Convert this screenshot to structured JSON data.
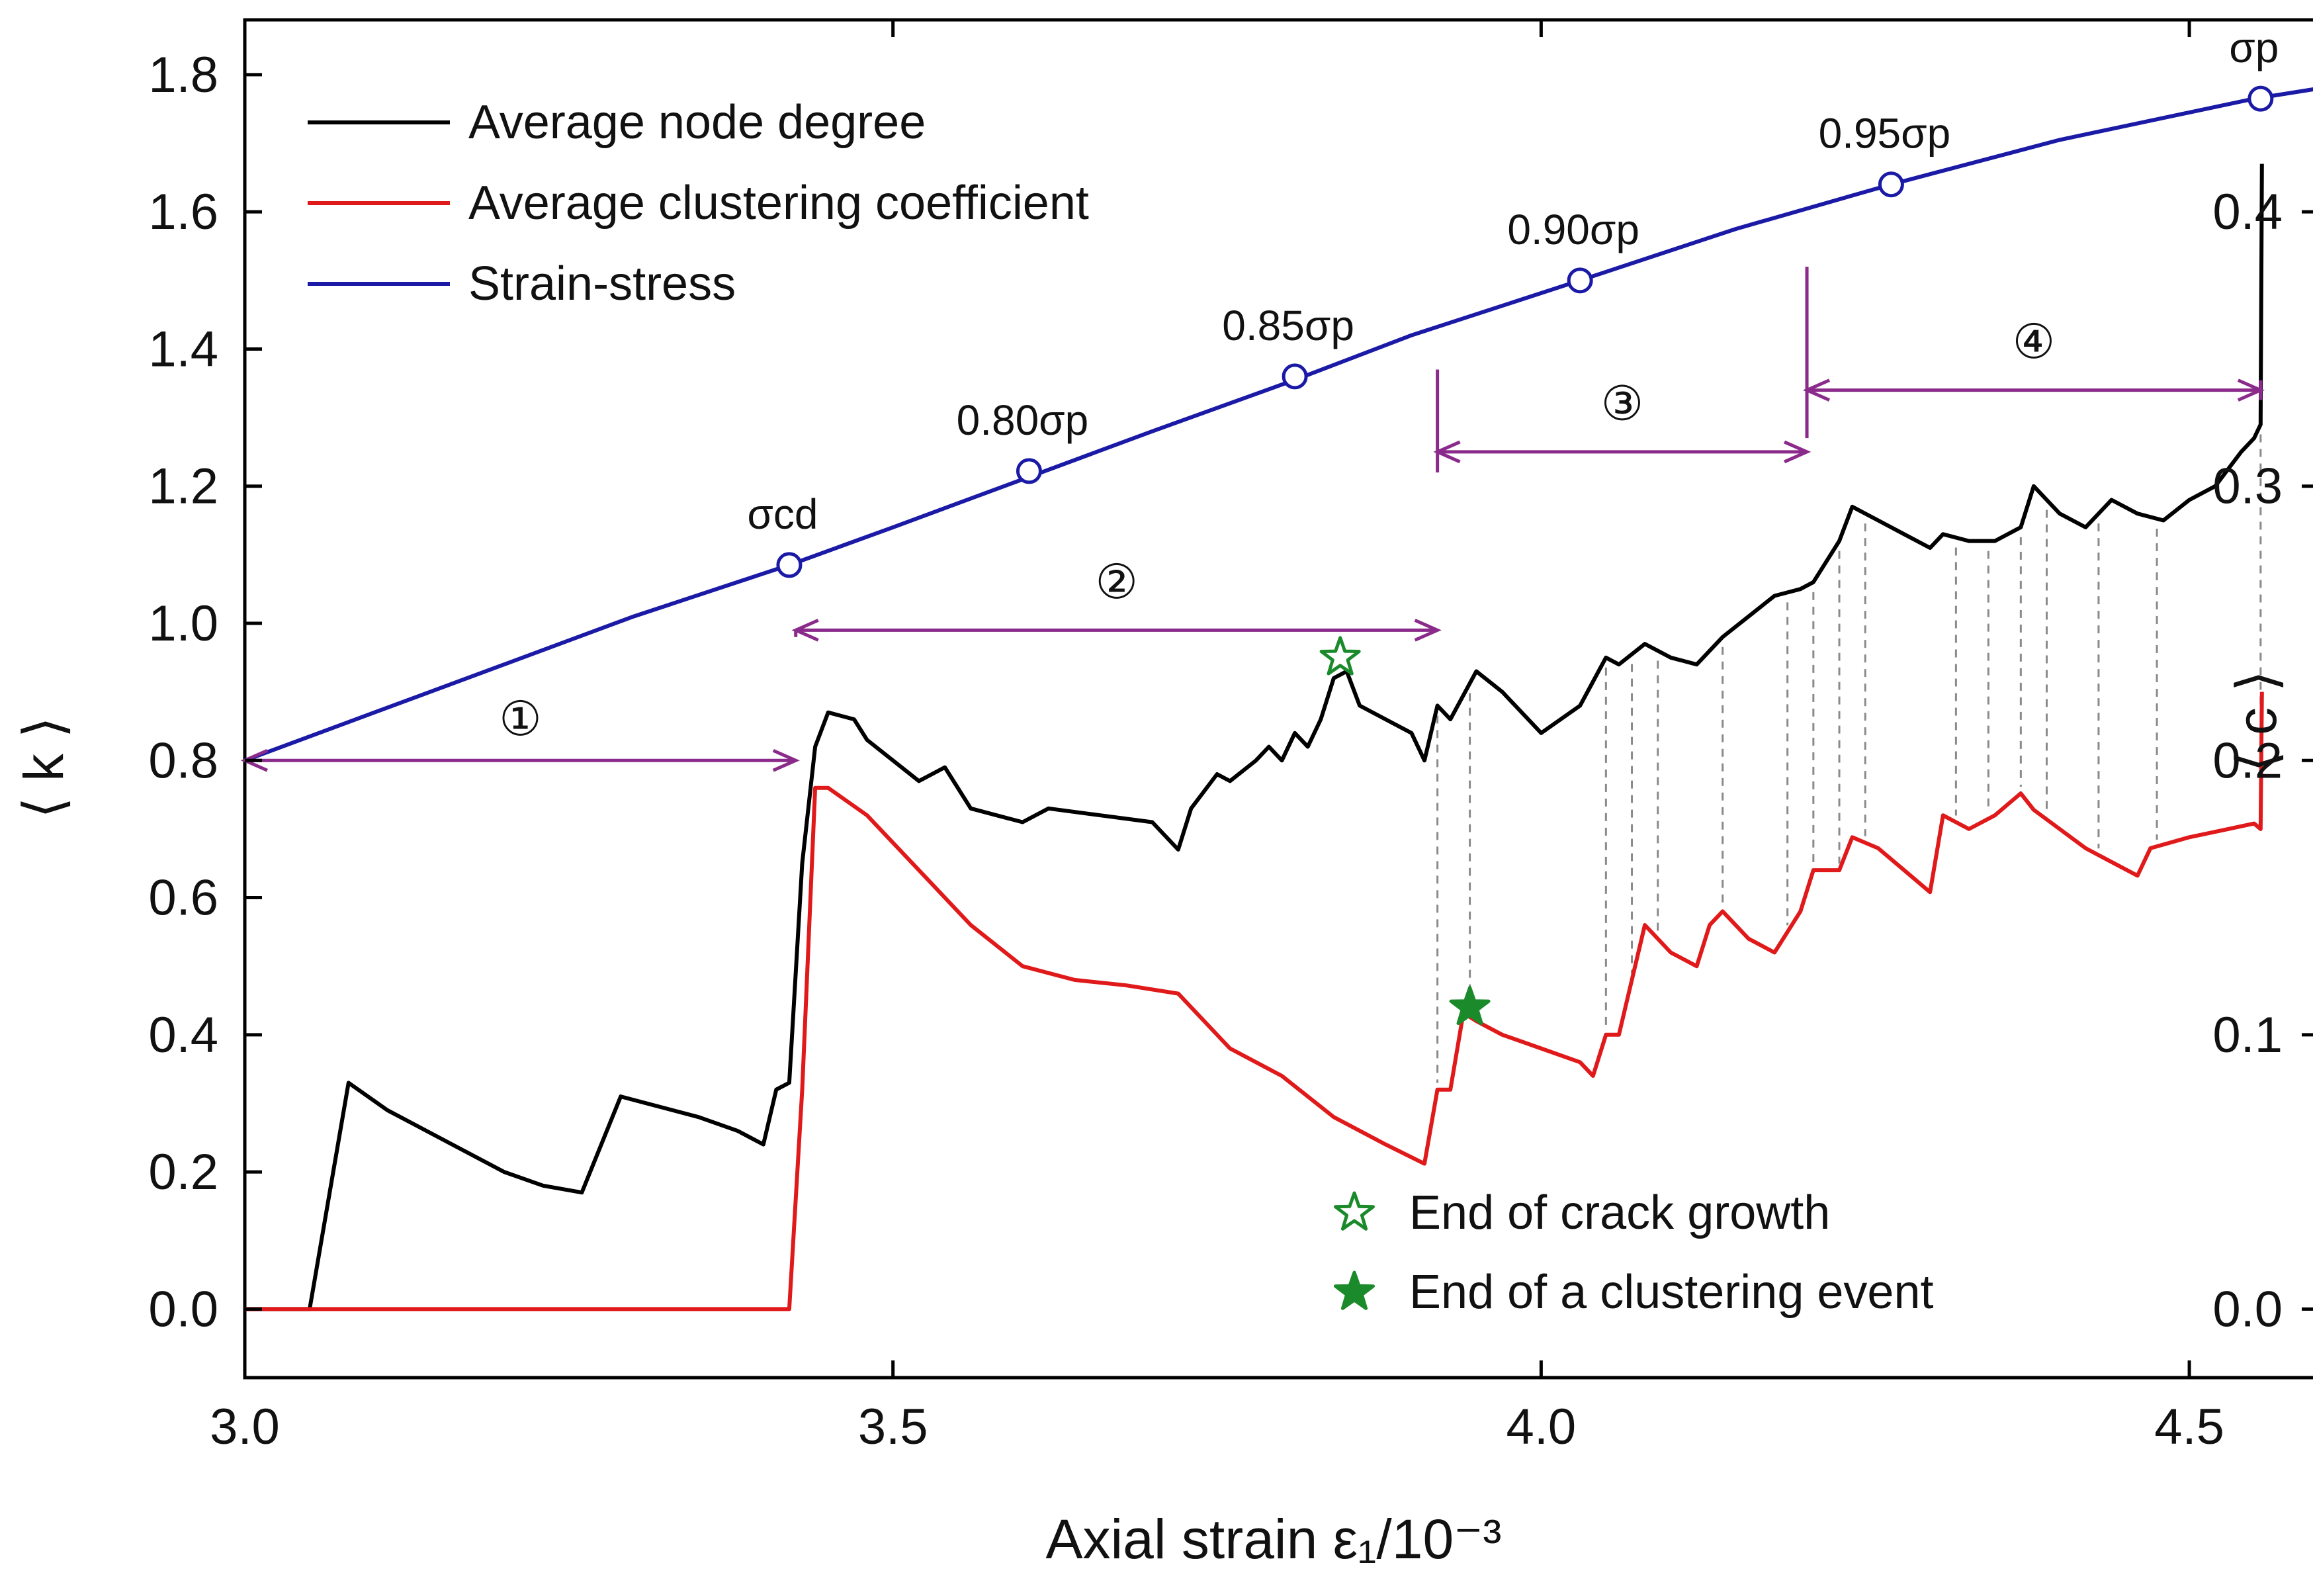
{
  "chart_data": {
    "type": "line",
    "title": "",
    "xlabel": "Axial strain ε₁/10⁻³",
    "ylabel_left": "⟨ k ⟩",
    "ylabel_right": "⟨ c ⟩",
    "xlim": [
      3.0,
      4.6
    ],
    "ylim_left": [
      -0.1,
      1.88
    ],
    "ylim_right": [
      -0.025,
      0.47
    ],
    "x_ticks": [
      "3.0",
      "3.5",
      "4.0",
      "4.5"
    ],
    "x_tick_values": [
      3.0,
      3.5,
      4.0,
      4.5
    ],
    "y_left_ticks": [
      "0.0",
      "0.2",
      "0.4",
      "0.6",
      "0.8",
      "1.0",
      "1.2",
      "1.4",
      "1.6",
      "1.8"
    ],
    "y_left_tick_values": [
      0.0,
      0.2,
      0.4,
      0.6,
      0.8,
      1.0,
      1.2,
      1.4,
      1.6,
      1.8
    ],
    "y_right_ticks": [
      "0.0",
      "0.1",
      "0.2",
      "0.3",
      "0.4"
    ],
    "y_right_tick_values": [
      0.0,
      0.1,
      0.2,
      0.3,
      0.4
    ],
    "grid": false,
    "legend_position": "top-left",
    "series": [
      {
        "name": "Average node degree",
        "color": "#000000",
        "axis": "left",
        "x": [
          3.0,
          3.05,
          3.08,
          3.11,
          3.17,
          3.2,
          3.23,
          3.26,
          3.29,
          3.31,
          3.35,
          3.38,
          3.4,
          3.41,
          3.42,
          3.43,
          3.44,
          3.45,
          3.47,
          3.48,
          3.52,
          3.54,
          3.56,
          3.58,
          3.6,
          3.62,
          3.66,
          3.7,
          3.72,
          3.73,
          3.75,
          3.76,
          3.78,
          3.79,
          3.8,
          3.81,
          3.82,
          3.83,
          3.84,
          3.85,
          3.86,
          3.88,
          3.9,
          3.91,
          3.92,
          3.93,
          3.95,
          3.97,
          4.0,
          4.03,
          4.05,
          4.06,
          4.08,
          4.1,
          4.12,
          4.14,
          4.16,
          4.18,
          4.2,
          4.21,
          4.23,
          4.24,
          4.26,
          4.28,
          4.3,
          4.31,
          4.33,
          4.35,
          4.37,
          4.38,
          4.4,
          4.42,
          4.44,
          4.46,
          4.48,
          4.5,
          4.52,
          4.54,
          4.55,
          4.555,
          4.556
        ],
        "y": [
          0.0,
          0.0,
          0.33,
          0.29,
          0.23,
          0.2,
          0.18,
          0.17,
          0.31,
          0.3,
          0.28,
          0.26,
          0.24,
          0.32,
          0.33,
          0.65,
          0.82,
          0.87,
          0.86,
          0.83,
          0.77,
          0.79,
          0.73,
          0.72,
          0.71,
          0.73,
          0.72,
          0.71,
          0.67,
          0.73,
          0.78,
          0.77,
          0.8,
          0.82,
          0.8,
          0.84,
          0.82,
          0.86,
          0.92,
          0.93,
          0.88,
          0.86,
          0.84,
          0.8,
          0.88,
          0.86,
          0.93,
          0.9,
          0.84,
          0.88,
          0.95,
          0.94,
          0.97,
          0.95,
          0.94,
          0.98,
          1.01,
          1.04,
          1.05,
          1.06,
          1.12,
          1.17,
          1.15,
          1.13,
          1.11,
          1.13,
          1.12,
          1.12,
          1.14,
          1.2,
          1.16,
          1.14,
          1.18,
          1.16,
          1.15,
          1.18,
          1.2,
          1.25,
          1.27,
          1.29,
          1.67
        ]
      },
      {
        "name": "Average clustering coefficient",
        "color": "#e0191a",
        "axis": "right",
        "x": [
          3.0,
          3.42,
          3.43,
          3.44,
          3.45,
          3.48,
          3.52,
          3.56,
          3.6,
          3.64,
          3.68,
          3.72,
          3.76,
          3.8,
          3.84,
          3.88,
          3.91,
          3.92,
          3.93,
          3.94,
          3.95,
          3.97,
          4.0,
          4.03,
          4.04,
          4.05,
          4.06,
          4.07,
          4.08,
          4.1,
          4.12,
          4.13,
          4.14,
          4.16,
          4.18,
          4.2,
          4.21,
          4.23,
          4.24,
          4.26,
          4.28,
          4.3,
          4.31,
          4.33,
          4.35,
          4.37,
          4.38,
          4.4,
          4.42,
          4.44,
          4.46,
          4.47,
          4.5,
          4.53,
          4.55,
          4.555,
          4.556
        ],
        "y": [
          0.0,
          0.0,
          0.08,
          0.19,
          0.19,
          0.18,
          0.16,
          0.14,
          0.125,
          0.12,
          0.118,
          0.115,
          0.095,
          0.085,
          0.07,
          0.06,
          0.053,
          0.08,
          0.08,
          0.108,
          0.105,
          0.1,
          0.095,
          0.09,
          0.085,
          0.1,
          0.1,
          0.12,
          0.14,
          0.13,
          0.125,
          0.14,
          0.145,
          0.135,
          0.13,
          0.145,
          0.16,
          0.16,
          0.172,
          0.168,
          0.16,
          0.152,
          0.18,
          0.175,
          0.18,
          0.188,
          0.182,
          0.175,
          0.168,
          0.163,
          0.158,
          0.168,
          0.172,
          0.175,
          0.177,
          0.175,
          0.225
        ]
      },
      {
        "name": "Strain-stress",
        "color": "#1a1aa6",
        "axis": "left",
        "x": [
          3.0,
          3.1,
          3.2,
          3.3,
          3.42,
          3.5,
          3.6,
          3.7,
          3.81,
          3.9,
          4.03,
          4.15,
          4.27,
          4.4,
          4.55,
          4.6
        ],
        "y": [
          0.8,
          0.87,
          0.94,
          1.01,
          1.085,
          1.14,
          1.21,
          1.28,
          1.355,
          1.42,
          1.5,
          1.575,
          1.64,
          1.705,
          1.765,
          1.78
        ]
      }
    ],
    "stress_markers": [
      {
        "label": "σcd",
        "x": 3.42,
        "y": 1.085
      },
      {
        "label": "0.80σp",
        "x": 3.605,
        "y": 1.222
      },
      {
        "label": "0.85σp",
        "x": 3.81,
        "y": 1.36
      },
      {
        "label": "0.90σp",
        "x": 4.03,
        "y": 1.5
      },
      {
        "label": "0.95σp",
        "x": 4.27,
        "y": 1.64
      },
      {
        "label": "σp",
        "x": 4.555,
        "y": 1.765
      }
    ],
    "stages": [
      {
        "label": "①",
        "x_start": 3.0,
        "x_end": 3.425,
        "arrow_y": 0.8,
        "label_y": 0.86,
        "line_top": 0.8
      },
      {
        "label": "②",
        "x_start": 3.425,
        "x_end": 3.92,
        "arrow_y": 0.99,
        "label_y": 1.06,
        "line_top": 0.99
      },
      {
        "label": "③",
        "x_start": 3.92,
        "x_end": 4.205,
        "arrow_y": 1.25,
        "label_y": 1.32,
        "line_top": 1.37
      },
      {
        "label": "④",
        "x_start": 4.205,
        "x_end": 4.555,
        "arrow_y": 1.34,
        "label_y": 1.41,
        "line_top": 1.52
      }
    ],
    "stage_line_bottoms": [
      0.8,
      0.98,
      1.22,
      1.27
    ],
    "event_lines_x": [
      3.92,
      3.945,
      4.05,
      4.07,
      4.09,
      4.14,
      4.19,
      4.21,
      4.23,
      4.25,
      4.32,
      4.345,
      4.37,
      4.39,
      4.43,
      4.475,
      4.555
    ],
    "star_markers": [
      {
        "type": "open",
        "x": 3.845,
        "y": 0.95,
        "color": "#1a8a2a"
      },
      {
        "type": "filled",
        "x": 3.945,
        "y": 0.44,
        "color": "#1a8a2a"
      }
    ],
    "legend": [
      {
        "label": "Average node degree",
        "color": "#000000"
      },
      {
        "label": "Average clustering coefficient",
        "color": "#e0191a"
      },
      {
        "label": "Strain-stress",
        "color": "#1a1aa6"
      }
    ],
    "star_legend": [
      {
        "label": "End of crack growth",
        "type": "open"
      },
      {
        "label": "End of a clustering event",
        "type": "filled"
      }
    ]
  }
}
